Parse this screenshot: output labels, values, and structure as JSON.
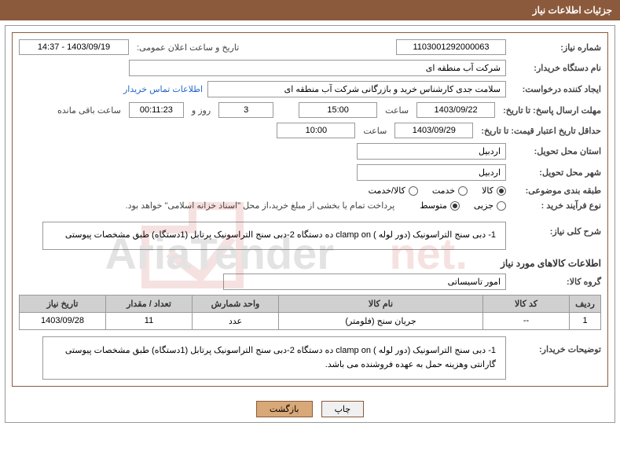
{
  "header": {
    "title": "جزئیات اطلاعات نیاز"
  },
  "fields": {
    "need_no_label": "شماره نیاز:",
    "need_no": "1103001292000063",
    "announce_label": "تاریخ و ساعت اعلان عمومی:",
    "announce_value": "1403/09/19 - 14:37",
    "buyer_org_label": "نام دستگاه خریدار:",
    "buyer_org": "شرکت آب منطقه ای",
    "requester_label": "ایجاد کننده درخواست:",
    "requester": "سلامت جدی کارشناس خرید و بازرگانی شرکت آب منطقه ای",
    "contact_link": "اطلاعات تماس خریدار",
    "deadline_label": "مهلت ارسال پاسخ: تا تاریخ:",
    "deadline_date": "1403/09/22",
    "time_word": "ساعت",
    "deadline_time": "15:00",
    "days_val": "3",
    "days_and": "روز و",
    "countdown": "00:11:23",
    "remaining": "ساعت باقی مانده",
    "validity_label": "حداقل تاریخ اعتبار قیمت: تا تاریخ:",
    "validity_date": "1403/09/29",
    "validity_time": "10:00",
    "province_label": "استان محل تحویل:",
    "province": "اردبیل",
    "city_label": "شهر محل تحویل:",
    "city": "اردبیل",
    "category_label": "طبقه بندی موضوعی:",
    "process_label": "نوع فرآیند خرید :",
    "payment_note": "پرداخت تمام یا بخشی از مبلغ خرید،از محل \"اسناد خزانه اسلامی\" خواهد بود."
  },
  "radios": {
    "category": [
      {
        "label": "کالا",
        "selected": true
      },
      {
        "label": "خدمت",
        "selected": false
      },
      {
        "label": "کالا/خدمت",
        "selected": false
      }
    ],
    "process": [
      {
        "label": "جزیی",
        "selected": false
      },
      {
        "label": "متوسط",
        "selected": true
      }
    ]
  },
  "overview": {
    "label": "شرح کلی نیاز:",
    "text": "1- دبی سنج التراسونیک (دور لوله ) clamp on  ده دستگاه 2-دبی سنج التراسونیک پرتابل (1دستگاه) طبق مشخصات پیوستی"
  },
  "goods": {
    "section_title": "اطلاعات کالاهای مورد نیاز",
    "group_label": "گروه کالا:",
    "group_value": "امور تاسیساتی"
  },
  "table": {
    "headers": [
      "ردیف",
      "کد کالا",
      "نام کالا",
      "واحد شمارش",
      "تعداد / مقدار",
      "تاریخ نیاز"
    ],
    "rows": [
      [
        "1",
        "--",
        "جریان سنج (فلومتر)",
        "عدد",
        "11",
        "1403/09/28"
      ]
    ]
  },
  "buyer_desc": {
    "label": "توضیحات خریدار:",
    "text": "1- دبی سنج التراسونیک (دور لوله ) clamp on  ده دستگاه 2-دبی سنج التراسونیک پرتابل (1دستگاه) طبق مشخصات پیوستی گارانتی وهزینه حمل به عهده فروشنده می باشد."
  },
  "buttons": {
    "print": "چاپ",
    "back": "بازگشت"
  },
  "colors": {
    "brand": "#8b5a3c",
    "border": "#999",
    "th_bg": "#d0d0d0",
    "link": "#2266cc"
  }
}
